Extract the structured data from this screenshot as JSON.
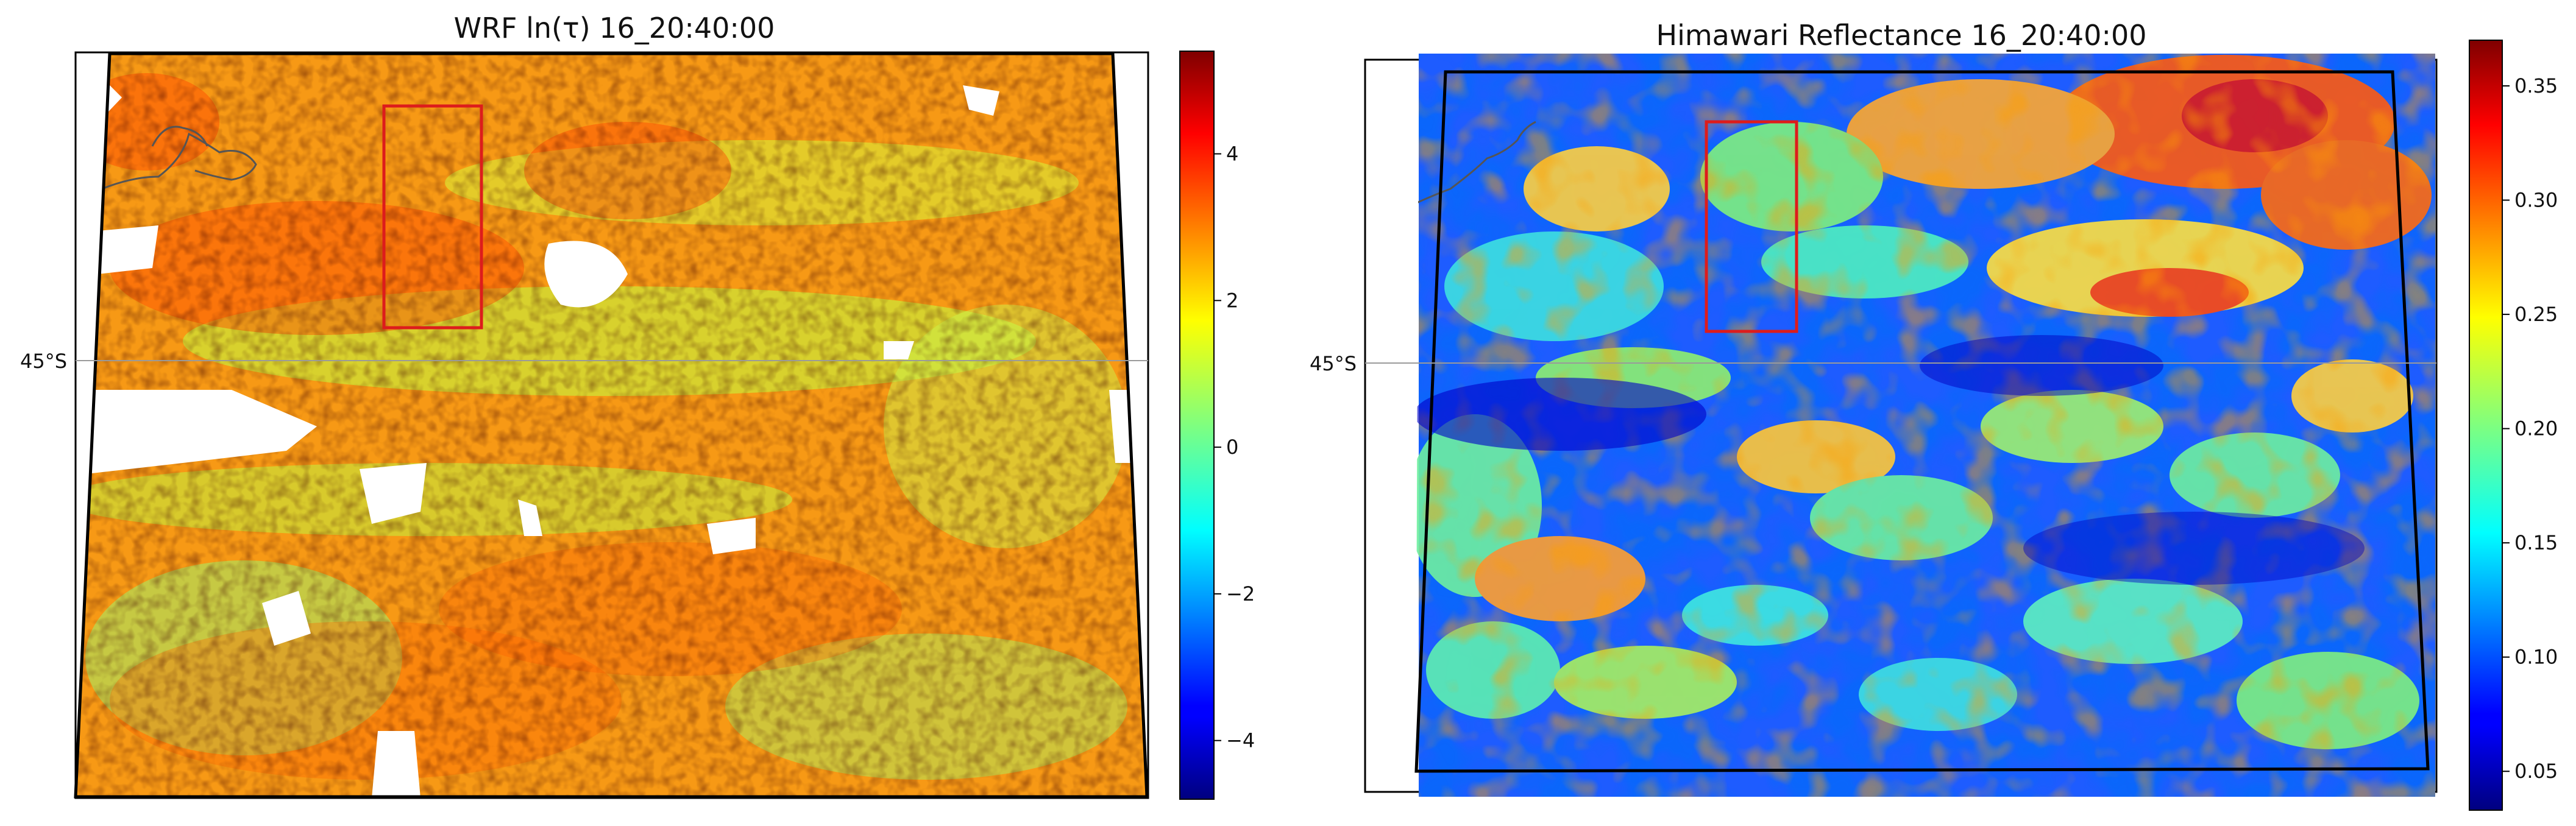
{
  "chart_data": [
    {
      "type": "heatmap",
      "title": "WRF ln(τ) 16_20:40:00",
      "lat_label": "45°S",
      "colormap": "jet",
      "colorbar": {
        "range": [
          -4.8,
          5.4
        ],
        "ticks": [
          4,
          2,
          0,
          -2,
          -4
        ],
        "tick_labels": [
          "4",
          "2",
          "0",
          "−2",
          "−4"
        ]
      },
      "highlight_box": "red rectangle, upper-left interior",
      "nan_regions": "white patches (missing/clear)"
    },
    {
      "type": "heatmap",
      "title": "Himawari Reflectance 16_20:40:00",
      "lat_label": "45°S",
      "colormap": "jet",
      "colorbar": {
        "range": [
          0.033,
          0.37
        ],
        "ticks": [
          0.35,
          0.3,
          0.25,
          0.2,
          0.15,
          0.1,
          0.05
        ],
        "tick_labels": [
          "0.35",
          "0.30",
          "0.25",
          "0.20",
          "0.15",
          "0.10",
          "0.05"
        ]
      },
      "highlight_box": "red rectangle, upper-left interior"
    }
  ],
  "colors": {
    "jet": [
      "#00007f",
      "#0000ff",
      "#007fff",
      "#00ffff",
      "#7fff7f",
      "#ffff00",
      "#ff7f00",
      "#ff0000",
      "#7f0000"
    ]
  }
}
